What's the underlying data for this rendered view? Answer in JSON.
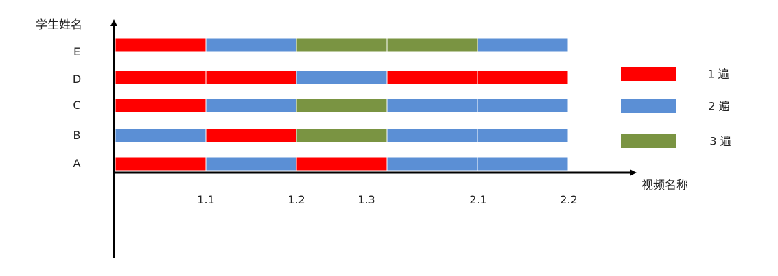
{
  "chart_data": {
    "type": "bar",
    "orientation": "horizontal-segmented",
    "x_axis_title": "视频名称",
    "y_axis_title": "学生姓名",
    "x_tick_labels": [
      "1.1",
      "1.2",
      "1.3",
      "2.1",
      "2.2"
    ],
    "students": [
      "A",
      "B",
      "C",
      "D",
      "E"
    ],
    "views": {
      "A": [
        1,
        2,
        1,
        2,
        2
      ],
      "B": [
        2,
        1,
        3,
        2,
        2
      ],
      "C": [
        1,
        2,
        3,
        2,
        2
      ],
      "D": [
        1,
        1,
        2,
        1,
        1
      ],
      "E": [
        1,
        2,
        3,
        3,
        2
      ]
    },
    "legend": [
      {
        "value": 1,
        "label": "1 遍",
        "color": "#ff0000"
      },
      {
        "value": 2,
        "label": "2 遍",
        "color": "#5b8fd5"
      },
      {
        "value": 3,
        "label": "3 遍",
        "color": "#7a9442"
      }
    ],
    "legend_position": "right",
    "grid": false
  }
}
